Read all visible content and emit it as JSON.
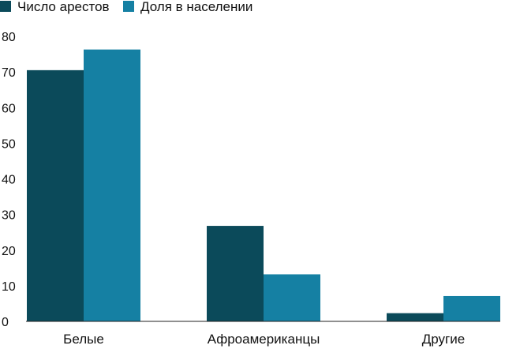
{
  "colors": {
    "series_1": "#0b4a5a",
    "series_2": "#1580a3",
    "axis": "#222222",
    "grid": "#d9d9d9"
  },
  "legend": {
    "items": [
      {
        "label": "Число арестов",
        "color": "#0b4a5a"
      },
      {
        "label": "Доля в населении",
        "color": "#1580a3"
      }
    ]
  },
  "chart_data": {
    "type": "bar",
    "title": "",
    "xlabel": "",
    "ylabel": "",
    "categories": [
      "Белые",
      "Афроамериканцы",
      "Другие"
    ],
    "series": [
      {
        "name": "Число арестов",
        "values": [
          70.5,
          26.8,
          2.3
        ]
      },
      {
        "name": "Доля в населении",
        "values": [
          76.3,
          13.2,
          7.1
        ]
      }
    ],
    "ylim": [
      0,
      80
    ],
    "yticks": [
      "0",
      "10",
      "20",
      "30",
      "40",
      "50",
      "60",
      "70",
      "80"
    ],
    "grid": false,
    "legend_position": "top-left"
  }
}
